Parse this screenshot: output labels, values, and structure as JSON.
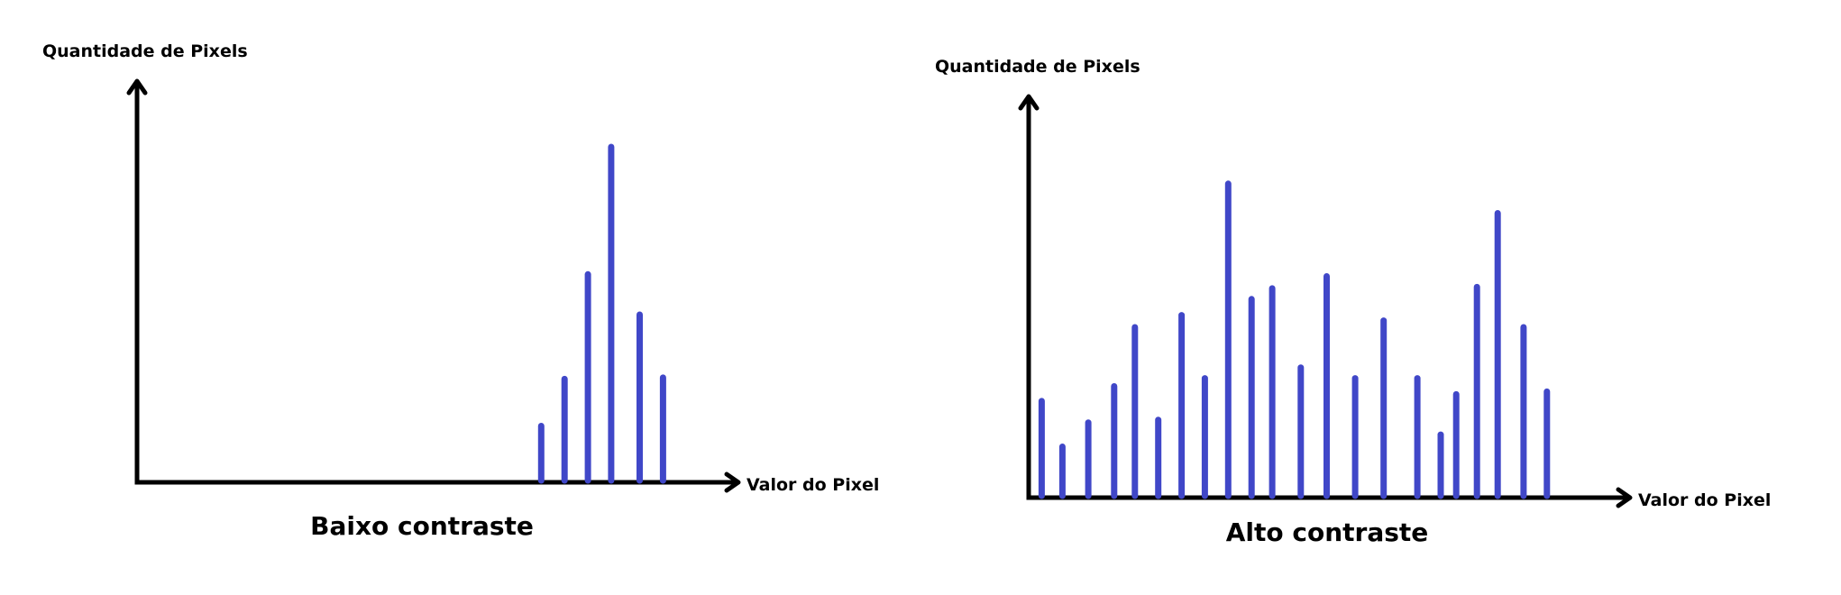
{
  "chart_data": [
    {
      "type": "bar",
      "title": "Baixo contraste",
      "xlabel": "Valor do Pixel",
      "ylabel": "Quantidade de Pixels",
      "x": [
        156,
        165,
        174,
        183,
        194,
        203
      ],
      "values": [
        42,
        77,
        155,
        250,
        125,
        78
      ],
      "xlim": [
        0,
        230
      ],
      "ylim": [
        0,
        295
      ],
      "grid": false,
      "legend": "none",
      "bar_color": "#4047c8"
    },
    {
      "type": "bar",
      "title": "Alto contraste",
      "xlabel": "Valor do Pixel",
      "ylabel": "Quantidade de Pixels",
      "x": [
        5,
        13,
        23,
        33,
        41,
        50,
        59,
        68,
        77,
        86,
        94,
        105,
        115,
        126,
        137,
        150,
        159,
        165,
        173,
        181,
        191,
        200
      ],
      "values": [
        72,
        38,
        56,
        83,
        127,
        58,
        136,
        89,
        234,
        148,
        156,
        97,
        165,
        89,
        132,
        89,
        47,
        77,
        157,
        212,
        127,
        79
      ],
      "xlim": [
        0,
        230
      ],
      "ylim": [
        0,
        295
      ],
      "grid": false,
      "legend": "none",
      "bar_color": "#4047c8"
    }
  ]
}
